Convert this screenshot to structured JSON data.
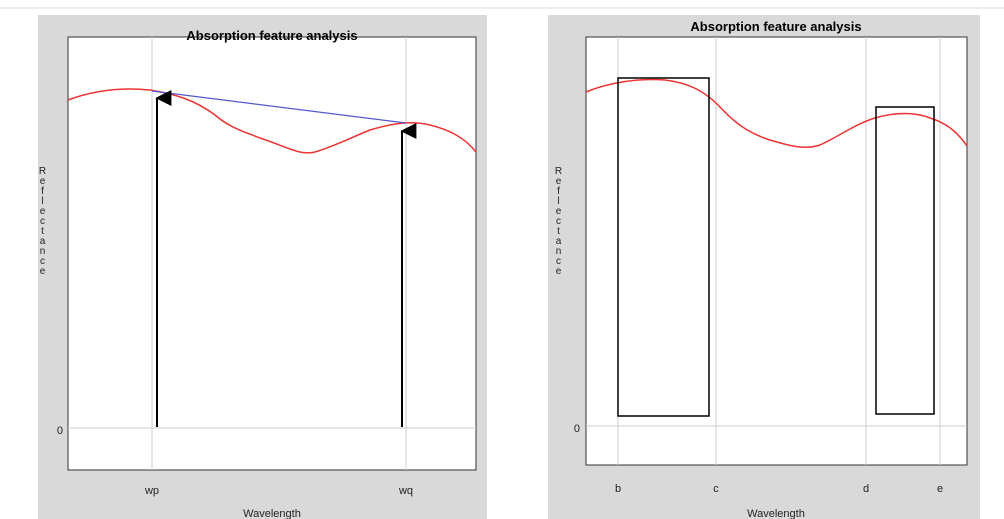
{
  "panels": [
    {
      "title": "Absorption feature analysis",
      "y_label": "Reflectance",
      "zero_label": "0",
      "x_ticks": [
        "wp",
        "wq"
      ],
      "x_label": "Wavelength"
    },
    {
      "title": "Absorption feature analysis",
      "y_label": "Reflectance",
      "zero_label": "0",
      "x_ticks": [
        "b",
        "c",
        "d",
        "e"
      ],
      "x_label": "Wavelength"
    }
  ]
}
